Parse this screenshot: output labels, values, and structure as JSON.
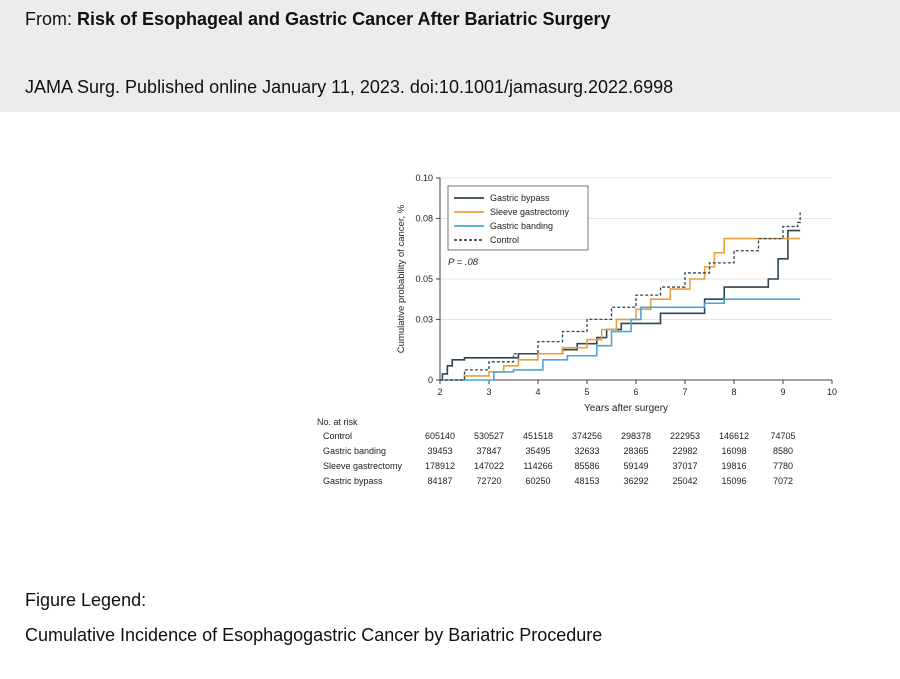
{
  "header": {
    "from_prefix": "From: ",
    "title": "Risk of Esophageal and Gastric Cancer After Bariatric Surgery",
    "citation": "JAMA Surg. Published online  January 11, 2023. doi:10.1001/jamasurg.2022.6998"
  },
  "legend": {
    "heading": "Figure Legend:",
    "caption": "Cumulative Incidence of Esophagogastric Cancer by Bariatric Procedure"
  },
  "colors": {
    "gastric_bypass": "#2f4553",
    "sleeve_gastrectomy": "#e8a03a",
    "gastric_banding": "#4aa6d8",
    "control": "#2f4553"
  },
  "chart_data": {
    "type": "line",
    "title": "",
    "xlabel": "Years after surgery",
    "ylabel": "Cumulative probability of cancer, %",
    "xlim": [
      2,
      10
    ],
    "ylim": [
      0,
      0.1
    ],
    "xticks": [
      2,
      3,
      4,
      5,
      6,
      7,
      8,
      9,
      10
    ],
    "yticks": [
      0,
      0.03,
      0.05,
      0.08,
      0.1
    ],
    "ytick_labels": [
      "0",
      "0.03",
      "0.05",
      "0.08",
      "0.10"
    ],
    "annotation": "P = .08",
    "legend_position": "top-left",
    "series": [
      {
        "name": "Gastric bypass",
        "key": "gastric_bypass",
        "style": "solid",
        "x": [
          2,
          2.05,
          2.15,
          2.25,
          2.5,
          3.3,
          3.6,
          4.5,
          4.8,
          5.2,
          5.4,
          5.7,
          6.5,
          7.4,
          7.8,
          8.7,
          8.9,
          9.1,
          9.35
        ],
        "y": [
          0,
          0.003,
          0.007,
          0.01,
          0.011,
          0.011,
          0.013,
          0.015,
          0.018,
          0.021,
          0.025,
          0.028,
          0.033,
          0.04,
          0.046,
          0.05,
          0.06,
          0.074,
          0.074
        ]
      },
      {
        "name": "Sleeve gastrectomy",
        "key": "sleeve_gastrectomy",
        "style": "solid",
        "x": [
          2,
          2.5,
          3.0,
          3.3,
          3.6,
          4.0,
          4.5,
          5.0,
          5.3,
          5.6,
          6.0,
          6.3,
          6.7,
          7.1,
          7.4,
          7.6,
          7.8,
          8.5,
          9.35
        ],
        "y": [
          0,
          0.002,
          0.004,
          0.007,
          0.01,
          0.013,
          0.016,
          0.02,
          0.025,
          0.03,
          0.035,
          0.04,
          0.045,
          0.05,
          0.056,
          0.063,
          0.07,
          0.07,
          0.07
        ]
      },
      {
        "name": "Gastric banding",
        "key": "gastric_banding",
        "style": "solid",
        "x": [
          2,
          2.8,
          3.1,
          3.5,
          4.1,
          4.6,
          5.2,
          5.5,
          5.9,
          6.1,
          7.4,
          7.8,
          9.35
        ],
        "y": [
          0,
          0,
          0.004,
          0.005,
          0.01,
          0.012,
          0.017,
          0.024,
          0.03,
          0.036,
          0.038,
          0.04,
          0.04
        ]
      },
      {
        "name": "Control",
        "key": "control",
        "style": "dashed",
        "x": [
          2,
          2.5,
          3.0,
          3.5,
          4.0,
          4.5,
          5.0,
          5.5,
          6.0,
          6.5,
          7.0,
          7.5,
          8.0,
          8.5,
          9.0,
          9.3,
          9.35
        ],
        "y": [
          0,
          0.005,
          0.009,
          0.013,
          0.019,
          0.024,
          0.03,
          0.036,
          0.042,
          0.046,
          0.053,
          0.058,
          0.064,
          0.07,
          0.076,
          0.078,
          0.083
        ]
      }
    ],
    "risk_table": {
      "title": "No. at risk",
      "rows": [
        {
          "label": "Control",
          "values": [
            "605140",
            "530527",
            "451518",
            "374256",
            "298378",
            "222953",
            "146612",
            "74705"
          ]
        },
        {
          "label": "Gastric banding",
          "values": [
            "39453",
            "37847",
            "35495",
            "32633",
            "28365",
            "22982",
            "16098",
            "8580"
          ]
        },
        {
          "label": "Sleeve gastrectomy",
          "values": [
            "178912",
            "147022",
            "114266",
            "85586",
            "59149",
            "37017",
            "19816",
            "7780"
          ]
        },
        {
          "label": "Gastric bypass",
          "values": [
            "84187",
            "72720",
            "60250",
            "48153",
            "36292",
            "25042",
            "15096",
            "7072"
          ]
        }
      ]
    }
  }
}
